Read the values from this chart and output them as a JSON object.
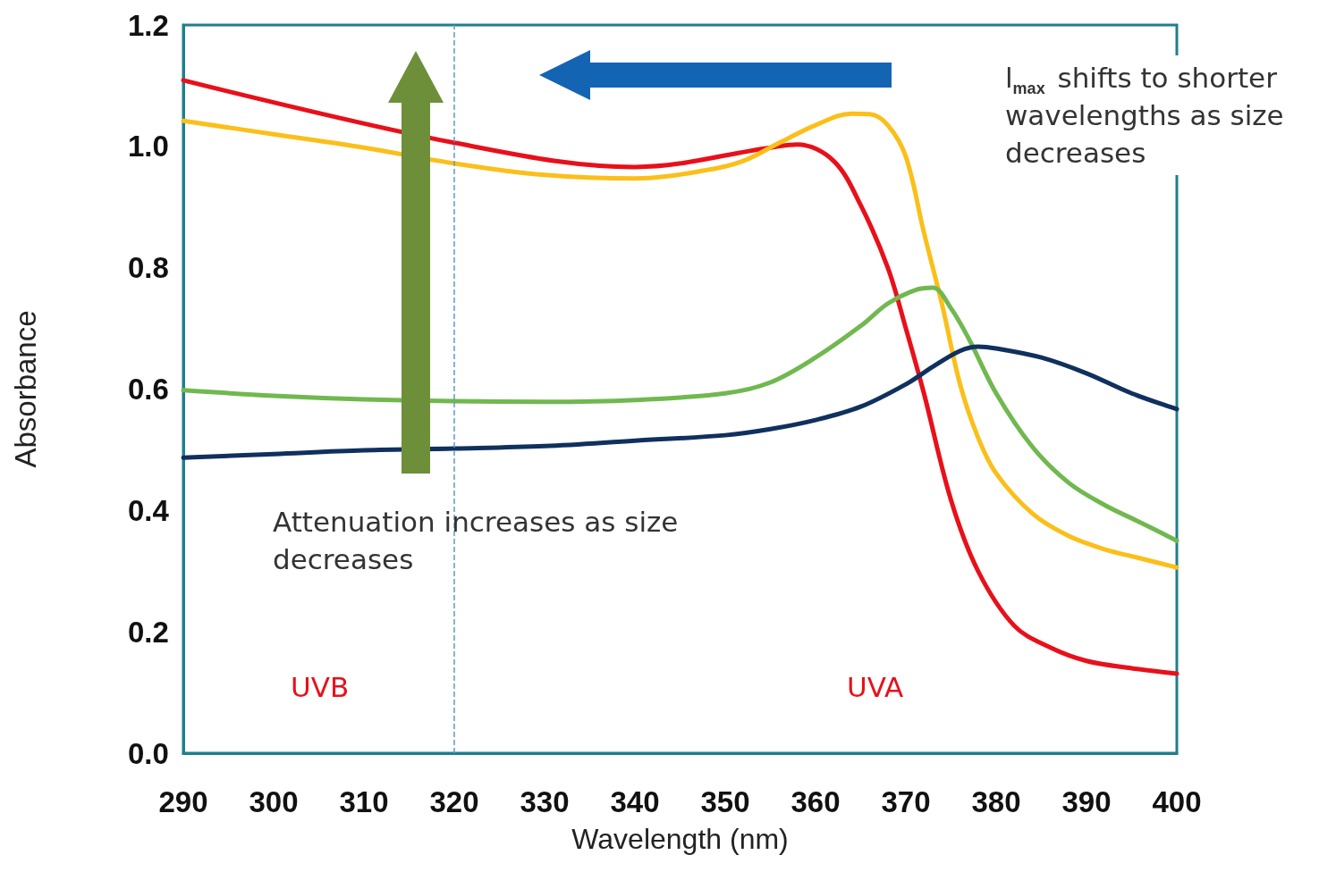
{
  "chart_data": {
    "type": "line",
    "xlabel": "Wavelength (nm)",
    "ylabel": "Absorbance",
    "xlim": [
      290,
      400
    ],
    "xticks": [
      290,
      300,
      310,
      320,
      330,
      340,
      350,
      360,
      370,
      380,
      390,
      400
    ],
    "ylim": [
      0,
      1.2
    ],
    "yticks": [
      {
        "value": 0,
        "label": "0.0"
      },
      0.2,
      0.4,
      0.6,
      0.8,
      {
        "value": 1,
        "label": "1.0"
      },
      1.2
    ],
    "grid": false,
    "marker": "none",
    "line_style": "solid",
    "series": [
      {
        "color": "#e8101a",
        "x": [
          290,
          320,
          340,
          355,
          358,
          362,
          365,
          368,
          370,
          372,
          375,
          378,
          382,
          386,
          390,
          395,
          400
        ],
        "values": [
          1.109,
          1.006,
          0.966,
          0.998,
          1.003,
          0.976,
          0.903,
          0.8,
          0.7,
          0.593,
          0.417,
          0.3,
          0.21,
          0.174,
          0.152,
          0.14,
          0.131
        ]
      },
      {
        "color": "#fbbf1a",
        "x": [
          290,
          300,
          310,
          320,
          330,
          340,
          348,
          352,
          356,
          360,
          364,
          366,
          368,
          370,
          372,
          374,
          376,
          378,
          380,
          384,
          388,
          392,
          396,
          400
        ],
        "values": [
          1.042,
          1.02,
          0.998,
          0.972,
          0.953,
          0.947,
          0.961,
          0.976,
          1.006,
          1.035,
          1.054,
          1.053,
          1.035,
          0.983,
          0.858,
          0.74,
          0.608,
          0.52,
          0.461,
          0.395,
          0.358,
          0.336,
          0.321,
          0.306
        ]
      },
      {
        "color": "#70b84f",
        "x": [
          290,
          300,
          310,
          320,
          330,
          340,
          350,
          355,
          360,
          365,
          368,
          371,
          373,
          375,
          377,
          380,
          384,
          388,
          392,
          396,
          400
        ],
        "values": [
          0.598,
          0.589,
          0.583,
          0.58,
          0.579,
          0.582,
          0.593,
          0.611,
          0.652,
          0.704,
          0.741,
          0.763,
          0.767,
          0.733,
          0.682,
          0.593,
          0.505,
          0.446,
          0.409,
          0.38,
          0.35
        ]
      },
      {
        "color": "#10305e",
        "x": [
          290,
          300,
          310,
          320,
          330,
          340,
          350,
          355,
          360,
          365,
          370,
          373,
          376,
          378,
          380,
          385,
          390,
          395,
          400
        ],
        "values": [
          0.487,
          0.493,
          0.499,
          0.502,
          0.506,
          0.515,
          0.524,
          0.534,
          0.549,
          0.571,
          0.608,
          0.637,
          0.663,
          0.67,
          0.667,
          0.652,
          0.626,
          0.593,
          0.567
        ]
      }
    ],
    "ref_lines": [
      {
        "axis": "x",
        "value": 320,
        "color": "#5b9bd5",
        "line_style": "dashed"
      }
    ],
    "annotations": [
      "UVB",
      "UVA",
      "Attenuation increases as size decreases",
      "l$_{max}$ shifts to shorter wavelengths as size decreases"
    ]
  }
}
